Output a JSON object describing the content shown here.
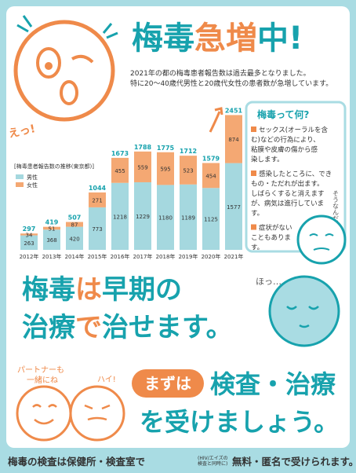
{
  "title": {
    "parts": [
      "梅毒",
      "急増",
      "中!"
    ]
  },
  "exclaim": "えっ!",
  "intro": [
    "2021年の都の梅毒患者報告数は過去最多となりました。",
    "特に20〜40歳代男性と20歳代女性の患者数が急増しています。"
  ],
  "chart_data": {
    "type": "bar",
    "stacked": true,
    "title": "[梅毒患者報告数の推移(東京都)]",
    "categories": [
      "2012年",
      "2013年",
      "2014年",
      "2015年",
      "2016年",
      "2017年",
      "2018年",
      "2019年",
      "2020年",
      "2021年"
    ],
    "series": [
      {
        "name": "男性",
        "color": "#a5d8df",
        "values": [
          263,
          368,
          420,
          773,
          1218,
          1229,
          1180,
          1189,
          1125,
          1577
        ]
      },
      {
        "name": "女性",
        "color": "#f4a873",
        "values": [
          34,
          51,
          87,
          271,
          455,
          559,
          595,
          523,
          454,
          874
        ]
      }
    ],
    "totals": [
      297,
      419,
      507,
      1044,
      1673,
      1788,
      1775,
      1712,
      1579,
      2451
    ],
    "ylim": [
      0,
      2500
    ]
  },
  "info": {
    "heading": "梅毒って何?",
    "items": [
      [
        "セックス(オーラルを含",
        "む)などの行為により、",
        "粘膜や皮膚の傷から感",
        "染します。"
      ],
      [
        "感染したところに、でき",
        "もの・ただれが出ます。",
        "しばらくすると消えます",
        "が、病気は進行していま",
        "す。"
      ],
      [
        "症状がない",
        "こともありま",
        "す。"
      ]
    ]
  },
  "aside": "そうなんだ",
  "relief": "ほっ…",
  "message": {
    "line1": [
      "梅毒",
      "は",
      "早期の"
    ],
    "line2": [
      "治療",
      "で",
      "治せます。"
    ]
  },
  "partner": [
    "パートナーも",
    "一緒にね"
  ],
  "reply": "ハイ!",
  "call": {
    "badge": "まずは",
    "line1": "検査・治療",
    "line2": "を受けましょう。"
  },
  "footer": {
    "lead": "梅毒の検査は保健所・検査室で",
    "note": [
      "(HIV/エイズの",
      "検査と同時に)"
    ],
    "tail": "無料・匿名で受けられます。"
  }
}
